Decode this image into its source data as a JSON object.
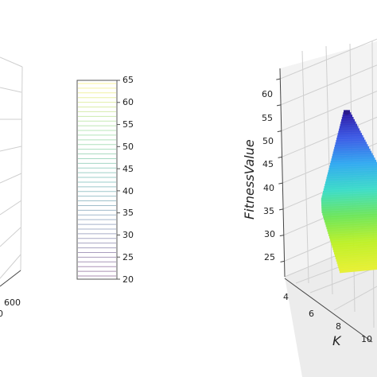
{
  "chart_data": [
    {
      "type": "surface",
      "partial": true,
      "x_tick_labels": [
        "600"
      ],
      "x_tick_partial": "0"
    },
    {
      "type": "colorbar",
      "ticks": [
        "20",
        "25",
        "30",
        "35",
        "40",
        "45",
        "50",
        "55",
        "60",
        "65"
      ],
      "range": [
        20,
        65
      ],
      "colormap": "viridis-like (purple → teal → green → yellow)",
      "style": "contour lines"
    },
    {
      "type": "surface",
      "zlabel": "FitnessValue",
      "xlabel": "K",
      "z_ticks": [
        "25",
        "30",
        "35",
        "40",
        "45",
        "50",
        "55",
        "60"
      ],
      "zlim": [
        22,
        62
      ],
      "x_ticks": [
        "4",
        "6",
        "8",
        "10"
      ],
      "colormap": "blue → cyan → green → yellow",
      "surface_peak_approx": 54,
      "surface_low_approx": 25
    }
  ]
}
